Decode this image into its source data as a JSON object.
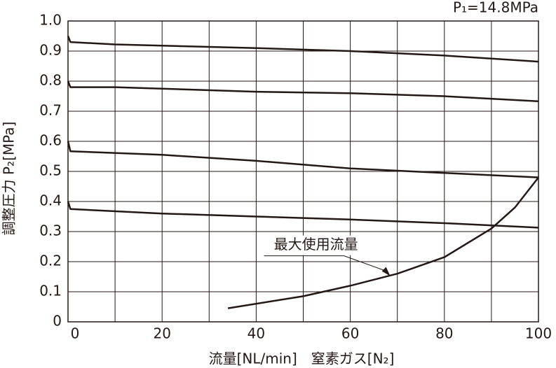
{
  "chart_data": {
    "type": "line",
    "note_label": "P₁=14.8MPa",
    "xlabel": "流量[NL/min]　窒素ガス[N₂]",
    "ylabel": "調整圧力 P₂[MPa]",
    "xlim": [
      0,
      100
    ],
    "ylim": [
      0,
      1
    ],
    "xticks": [
      0,
      20,
      40,
      60,
      80,
      100
    ],
    "xgrid": [
      10,
      30,
      50,
      70,
      90
    ],
    "yticks": [
      0,
      0.1,
      0.2,
      0.3,
      0.4,
      0.5,
      0.6,
      0.7,
      0.8,
      0.9,
      {
        "value": 1,
        "label": "1.0"
      }
    ],
    "grid": true,
    "series": [
      {
        "color": "#231815",
        "x": [
          0,
          0.5,
          10,
          40,
          60,
          80,
          100
        ],
        "values": [
          0.95,
          0.93,
          0.922,
          0.91,
          0.9,
          0.885,
          0.865
        ]
      },
      {
        "color": "#231815",
        "x": [
          0,
          0.5,
          10,
          40,
          60,
          80,
          100
        ],
        "values": [
          0.8,
          0.78,
          0.78,
          0.765,
          0.76,
          0.75,
          0.733
        ]
      },
      {
        "color": "#231815",
        "x": [
          0,
          0.5,
          20,
          40,
          60,
          80,
          100
        ],
        "values": [
          0.6,
          0.567,
          0.555,
          0.535,
          0.51,
          0.495,
          0.48
        ]
      },
      {
        "color": "#231815",
        "x": [
          0,
          0.5,
          20,
          40,
          60,
          80,
          100
        ],
        "values": [
          0.4,
          0.375,
          0.36,
          0.35,
          0.34,
          0.328,
          0.313
        ]
      },
      {
        "color": "#231815",
        "x": [
          34,
          50,
          60,
          70,
          80,
          90,
          95,
          100
        ],
        "values": [
          0.045,
          0.085,
          0.12,
          0.16,
          0.215,
          0.31,
          0.38,
          0.48
        ]
      }
    ],
    "annotation": {
      "text": "最大使用流量",
      "x": 68.5,
      "y": 0.152
    }
  }
}
